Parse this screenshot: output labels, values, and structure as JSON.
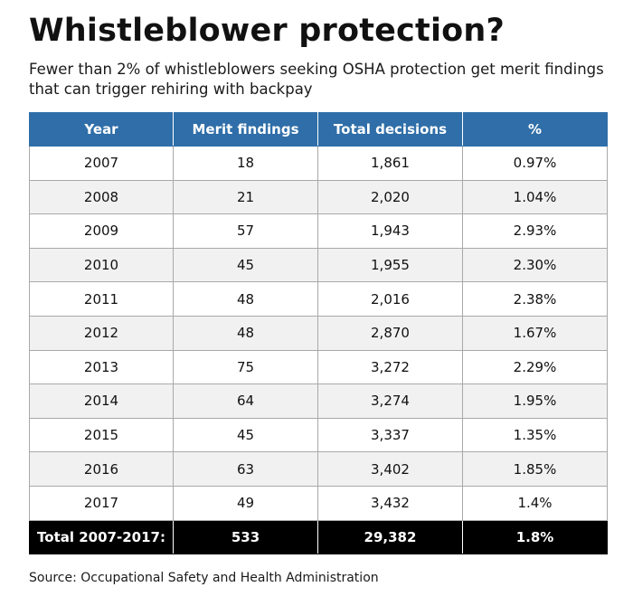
{
  "title": "Whistleblower protection?",
  "subtitle": "Fewer than 2% of whistleblowers seeking OSHA protection get merit findings that can trigger rehiring with backpay",
  "source": "Source: Occupational Safety and Health Administration",
  "colors": {
    "header_bg": "#2f6ea8",
    "header_text": "#ffffff",
    "row_alt_bg": "#f1f1f1",
    "total_bg": "#000000",
    "total_text": "#ffffff"
  },
  "chart_data": {
    "type": "table",
    "columns": [
      "Year",
      "Merit findings",
      "Total decisions",
      "%"
    ],
    "rows": [
      [
        "2007",
        "18",
        "1,861",
        "0.97%"
      ],
      [
        "2008",
        "21",
        "2,020",
        "1.04%"
      ],
      [
        "2009",
        "57",
        "1,943",
        "2.93%"
      ],
      [
        "2010",
        "45",
        "1,955",
        "2.30%"
      ],
      [
        "2011",
        "48",
        "2,016",
        "2.38%"
      ],
      [
        "2012",
        "48",
        "2,870",
        "1.67%"
      ],
      [
        "2013",
        "75",
        "3,272",
        "2.29%"
      ],
      [
        "2014",
        "64",
        "3,274",
        "1.95%"
      ],
      [
        "2015",
        "45",
        "3,337",
        "1.35%"
      ],
      [
        "2016",
        "63",
        "3,402",
        "1.85%"
      ],
      [
        "2017",
        "49",
        "3,432",
        "1.4%"
      ]
    ],
    "total": [
      "Total 2007-2017:",
      "533",
      "29,382",
      "1.8%"
    ]
  }
}
